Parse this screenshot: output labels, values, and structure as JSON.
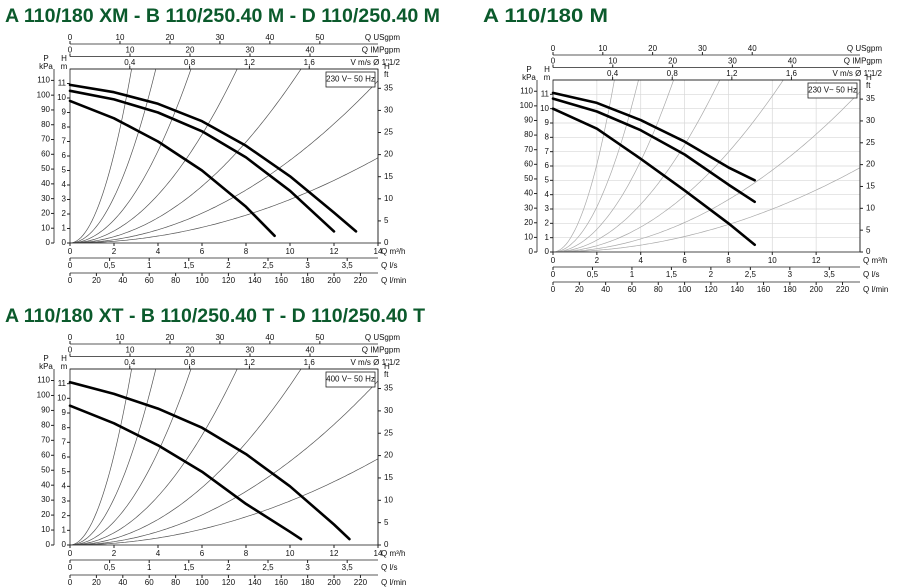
{
  "chart_data": [
    {
      "type": "line",
      "title": "A 110/180 XM - B 110/250.40 M - D 110/250.40 M",
      "annotation": "230 V~ 50 Hz",
      "grid": false,
      "xlabel": "Q m³/h",
      "xlim": [
        0,
        14
      ],
      "xticks": [
        0,
        2,
        4,
        6,
        8,
        10,
        12,
        14
      ],
      "ylabel": [
        "H",
        "m"
      ],
      "ylim": [
        0,
        12
      ],
      "yticks": [
        0,
        1,
        2,
        3,
        4,
        5,
        6,
        7,
        8,
        9,
        10,
        11
      ],
      "extra_axes": [
        {
          "side": "top",
          "label": "Q USgpm",
          "lim": [
            0,
            61.64
          ],
          "ticks": [
            0,
            10,
            20,
            30,
            40,
            50
          ]
        },
        {
          "side": "top",
          "label": "Q IMPgpm",
          "lim": [
            0,
            51.33
          ],
          "ticks": [
            0,
            10,
            20,
            30,
            40
          ]
        },
        {
          "side": "top",
          "label": "V m/s Ø 1\"1/2",
          "lim": [
            0,
            2.06
          ],
          "ticks": [
            {
              "value": 0.4,
              "label": "0,4"
            },
            {
              "value": 0.8,
              "label": "0,8"
            },
            {
              "value": 1.2,
              "label": "1,2"
            },
            {
              "value": 1.6,
              "label": "1,6"
            }
          ]
        },
        {
          "side": "bottom",
          "label": "Q l/s",
          "lim": [
            0,
            3.889
          ],
          "ticks": [
            0,
            {
              "value": 0.5,
              "label": "0,5"
            },
            1,
            {
              "value": 1.5,
              "label": "1,5"
            },
            2,
            {
              "value": 2.5,
              "label": "2,5"
            },
            3,
            {
              "value": 3.5,
              "label": "3,5"
            }
          ]
        },
        {
          "side": "bottom",
          "label": "Q l/min",
          "lim": [
            0,
            233.3
          ],
          "ticks": [
            0,
            20,
            40,
            60,
            80,
            100,
            120,
            140,
            160,
            180,
            200,
            220
          ]
        },
        {
          "side": "left",
          "label": [
            "P",
            "kPa"
          ],
          "lim": [
            0,
            117.7
          ],
          "ticks": [
            0,
            10,
            20,
            30,
            40,
            50,
            60,
            70,
            80,
            90,
            100,
            110
          ]
        },
        {
          "side": "right",
          "label": [
            "H",
            "ft"
          ],
          "lim": [
            0,
            39.37
          ],
          "ticks": [
            0,
            5,
            10,
            15,
            20,
            25,
            30,
            35
          ]
        }
      ],
      "series": [
        {
          "color": "#000000",
          "x": [
            0,
            2,
            4,
            6,
            8,
            10,
            12,
            13
          ],
          "y": [
            10.9,
            10.4,
            9.6,
            8.4,
            6.7,
            4.6,
            2.1,
            0.8
          ]
        },
        {
          "color": "#000000",
          "x": [
            0,
            2,
            4,
            6,
            8,
            10,
            12
          ],
          "y": [
            10.5,
            9.9,
            9.0,
            7.7,
            5.9,
            3.6,
            0.8
          ]
        },
        {
          "color": "#000000",
          "x": [
            0,
            2,
            4,
            6,
            8,
            9.3
          ],
          "y": [
            9.8,
            8.6,
            7.0,
            5.0,
            2.5,
            0.5
          ]
        }
      ]
    },
    {
      "type": "line",
      "title": "A 110/180 M",
      "annotation": "230 V~ 50 Hz",
      "grid": true,
      "xlabel": "Q m³/h",
      "xlim": [
        0,
        14
      ],
      "xticks": [
        0,
        2,
        4,
        6,
        8,
        10,
        12
      ],
      "ylabel": [
        "H",
        "m"
      ],
      "ylim": [
        0,
        12
      ],
      "yticks": [
        0,
        1,
        2,
        3,
        4,
        5,
        6,
        7,
        8,
        9,
        10,
        11
      ],
      "extra_axes": [
        {
          "side": "top",
          "label": "Q USgpm",
          "lim": [
            0,
            61.64
          ],
          "ticks": [
            0,
            10,
            20,
            30,
            40
          ]
        },
        {
          "side": "top",
          "label": "Q IMPgpm",
          "lim": [
            0,
            51.33
          ],
          "ticks": [
            0,
            10,
            20,
            30,
            40
          ]
        },
        {
          "side": "top",
          "label": "V m/s Ø 1\"1/2",
          "lim": [
            0,
            2.06
          ],
          "ticks": [
            {
              "value": 0.4,
              "label": "0,4"
            },
            {
              "value": 0.8,
              "label": "0,8"
            },
            {
              "value": 1.2,
              "label": "1,2"
            },
            {
              "value": 1.6,
              "label": "1,6"
            }
          ]
        },
        {
          "side": "bottom",
          "label": "Q l/s",
          "lim": [
            0,
            3.889
          ],
          "ticks": [
            0,
            {
              "value": 0.5,
              "label": "0,5"
            },
            1,
            {
              "value": 1.5,
              "label": "1,5"
            },
            2,
            {
              "value": 2.5,
              "label": "2,5"
            },
            3,
            {
              "value": 3.5,
              "label": "3,5"
            }
          ]
        },
        {
          "side": "bottom",
          "label": "Q l/min",
          "lim": [
            0,
            233.3
          ],
          "ticks": [
            0,
            20,
            40,
            60,
            80,
            100,
            120,
            140,
            160,
            180,
            200,
            220
          ]
        },
        {
          "side": "left",
          "label": [
            "P",
            "kPa"
          ],
          "lim": [
            0,
            117.7
          ],
          "ticks": [
            0,
            10,
            20,
            30,
            40,
            50,
            60,
            70,
            80,
            90,
            100,
            110
          ]
        },
        {
          "side": "right",
          "label": [
            "H",
            "ft"
          ],
          "lim": [
            0,
            39.37
          ],
          "ticks": [
            0,
            5,
            10,
            15,
            20,
            25,
            30,
            35
          ]
        }
      ],
      "series": [
        {
          "color": "#000000",
          "x": [
            0,
            2,
            4,
            6,
            8,
            9.2
          ],
          "y": [
            11.1,
            10.4,
            9.2,
            7.7,
            5.9,
            5.0
          ]
        },
        {
          "color": "#000000",
          "x": [
            0,
            2,
            4,
            6,
            8,
            9.2
          ],
          "y": [
            10.7,
            9.8,
            8.5,
            6.8,
            4.7,
            3.5
          ]
        },
        {
          "color": "#000000",
          "x": [
            0,
            2,
            4,
            6,
            8,
            9.2
          ],
          "y": [
            10.0,
            8.6,
            6.5,
            4.3,
            2.0,
            0.5
          ]
        }
      ]
    },
    {
      "type": "line",
      "title": "A 110/180 XT - B 110/250.40 T - D 110/250.40 T",
      "annotation": "400 V~ 50 Hz",
      "grid": false,
      "xlabel": "Q m³/h",
      "xlim": [
        0,
        14
      ],
      "xticks": [
        0,
        2,
        4,
        6,
        8,
        10,
        12,
        14
      ],
      "ylabel": [
        "H",
        "m"
      ],
      "ylim": [
        0,
        12
      ],
      "yticks": [
        0,
        1,
        2,
        3,
        4,
        5,
        6,
        7,
        8,
        9,
        10,
        11
      ],
      "extra_axes": [
        {
          "side": "top",
          "label": "Q USgpm",
          "lim": [
            0,
            61.64
          ],
          "ticks": [
            0,
            10,
            20,
            30,
            40,
            50
          ]
        },
        {
          "side": "top",
          "label": "Q IMPgpm",
          "lim": [
            0,
            51.33
          ],
          "ticks": [
            0,
            10,
            20,
            30,
            40
          ]
        },
        {
          "side": "top",
          "label": "V m/s Ø 1\"1/2",
          "lim": [
            0,
            2.06
          ],
          "ticks": [
            {
              "value": 0.4,
              "label": "0,4"
            },
            {
              "value": 0.8,
              "label": "0,8"
            },
            {
              "value": 1.2,
              "label": "1,2"
            },
            {
              "value": 1.6,
              "label": "1,6"
            }
          ]
        },
        {
          "side": "bottom",
          "label": "Q l/s",
          "lim": [
            0,
            3.889
          ],
          "ticks": [
            0,
            {
              "value": 0.5,
              "label": "0,5"
            },
            1,
            {
              "value": 1.5,
              "label": "1,5"
            },
            2,
            {
              "value": 2.5,
              "label": "2,5"
            },
            3,
            {
              "value": 3.5,
              "label": "3,5"
            }
          ]
        },
        {
          "side": "bottom",
          "label": "Q l/min",
          "lim": [
            0,
            233.3
          ],
          "ticks": [
            0,
            20,
            40,
            60,
            80,
            100,
            120,
            140,
            160,
            180,
            200,
            220
          ]
        },
        {
          "side": "left",
          "label": [
            "P",
            "kPa"
          ],
          "lim": [
            0,
            117.7
          ],
          "ticks": [
            0,
            10,
            20,
            30,
            40,
            50,
            60,
            70,
            80,
            90,
            100,
            110
          ]
        },
        {
          "side": "right",
          "label": [
            "H",
            "ft"
          ],
          "lim": [
            0,
            39.37
          ],
          "ticks": [
            0,
            5,
            10,
            15,
            20,
            25,
            30,
            35
          ]
        }
      ],
      "series": [
        {
          "color": "#000000",
          "x": [
            0,
            2,
            4,
            6,
            8,
            10,
            12,
            12.7
          ],
          "y": [
            11.1,
            10.3,
            9.3,
            8.0,
            6.2,
            4.0,
            1.4,
            0.4
          ]
        },
        {
          "color": "#000000",
          "x": [
            0,
            2,
            4,
            6,
            8,
            10,
            10.5
          ],
          "y": [
            9.5,
            8.3,
            6.8,
            5.0,
            2.8,
            0.9,
            0.4
          ]
        }
      ]
    }
  ]
}
